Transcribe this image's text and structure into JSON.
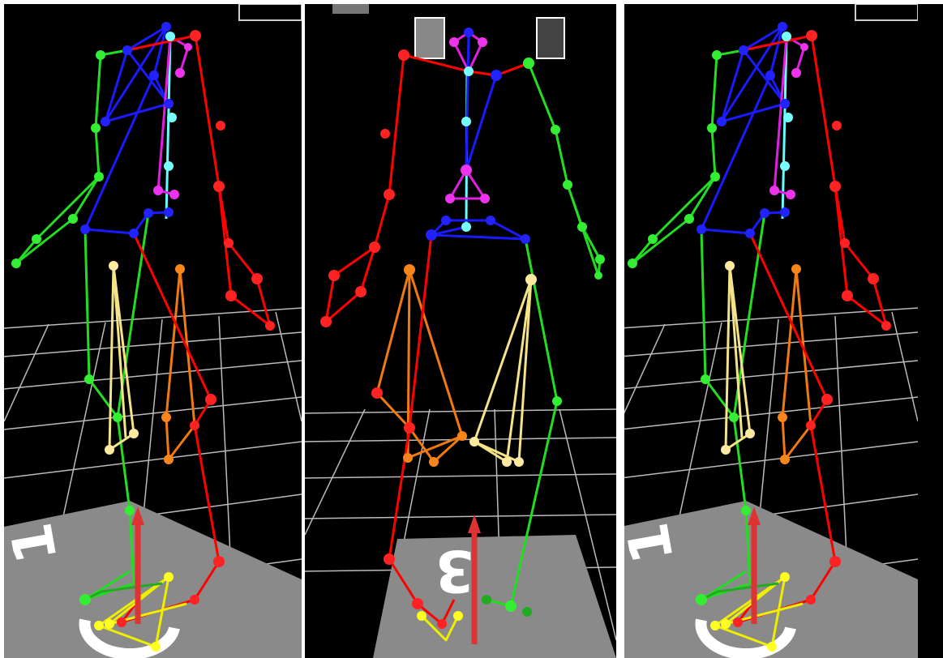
{
  "floor_markings": [
    "1",
    "3",
    "1"
  ]
}
